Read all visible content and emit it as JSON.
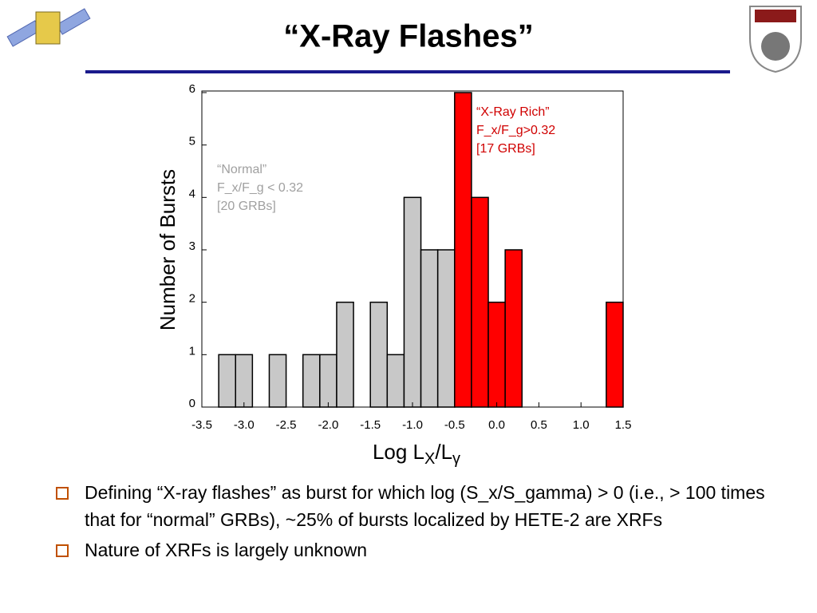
{
  "title": "“X-Ray Flashes”",
  "bullets": [
    "Defining “X-ray flashes” as burst for which log (S_x/S_gamma) > 0 (i.e., > 100 times that for “normal” GRBs), ~25% of bursts localized by HETE-2 are XRFs",
    "Nature of XRFs is largely unknown"
  ],
  "chart_data": {
    "type": "histogram",
    "bins": [
      -3.5,
      -3.3,
      -3.1,
      -2.9,
      -2.7,
      -2.5,
      -2.3,
      -2.1,
      -1.9,
      -1.7,
      -1.5,
      -1.3,
      -1.1,
      -0.9,
      -0.7,
      -0.5,
      -0.3,
      -0.1,
      0.1,
      0.3,
      0.5,
      0.7,
      0.9,
      1.1,
      1.3,
      1.5
    ],
    "series": [
      {
        "color": "#c8c8c8",
        "values": [
          0,
          1,
          1,
          0,
          1,
          0,
          1,
          1,
          2,
          0,
          2,
          1,
          4,
          3,
          3,
          0,
          0,
          0,
          0,
          0,
          0,
          0,
          0,
          0,
          0
        ]
      },
      {
        "color": "#ff0000",
        "values": [
          0,
          0,
          0,
          0,
          0,
          0,
          0,
          0,
          0,
          0,
          0,
          0,
          0,
          0,
          0,
          6,
          4,
          2,
          3,
          0,
          0,
          0,
          0,
          0,
          2
        ]
      }
    ],
    "xlim": [
      -3.5,
      1.5
    ],
    "xticks": [
      -3.5,
      {
        "value": -3,
        "label": "-3.0"
      },
      -2.5,
      {
        "value": -2,
        "label": "-2.0"
      },
      -1.5,
      {
        "value": -1,
        "label": "-1.0"
      },
      -0.5,
      {
        "value": 0,
        "label": "0.0"
      },
      0.5,
      {
        "value": 1,
        "label": "1.0"
      },
      1.5
    ],
    "ylim": [
      0,
      6
    ],
    "yticks": [
      0,
      1,
      2,
      3,
      4,
      5,
      6
    ],
    "ylabel": "Number of Bursts",
    "xlabel": [
      "Log L",
      "X",
      "/L",
      "γ"
    ],
    "annotations": [
      {
        "color": "#a0a0a0",
        "lines": [
          "“Normal”",
          "F_x/F_g < 0.32",
          "[20 GRBs]"
        ]
      },
      {
        "color": "#d00000",
        "lines": [
          "“X-Ray Rich”",
          "F_x/F_g>0.32",
          "[17 GRBs]"
        ]
      }
    ]
  }
}
